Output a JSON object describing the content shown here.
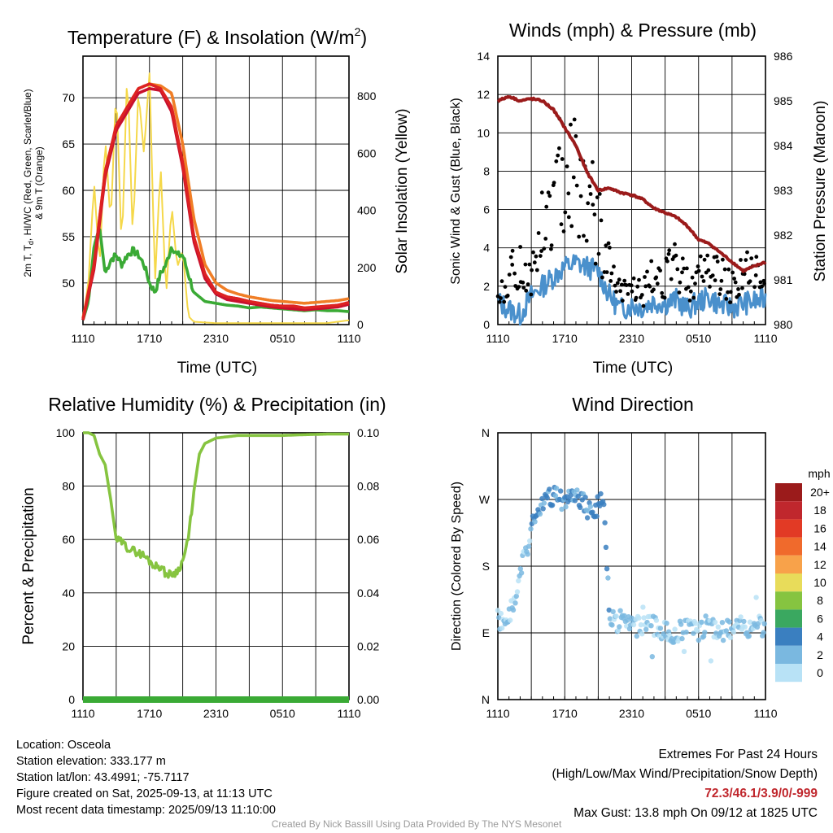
{
  "chart_data": [
    {
      "type": "line",
      "title": "Temperature (F) & Insolation (W/m²)",
      "xlabel": "Time (UTC)",
      "ylabel": "2m T, Td, HI/WC (Red, Green, Scarlet/Blue) & 9m T (Orange)",
      "y2label": "Solar Insolation (Yellow)",
      "x_ticks": [
        "1110",
        "1710",
        "2310",
        "0510",
        "1110"
      ],
      "ylim": [
        45.5,
        74.5
      ],
      "y_ticks": [
        50,
        55,
        60,
        65,
        70
      ],
      "y2lim": [
        0,
        940
      ],
      "y2_ticks": [
        0,
        200,
        400,
        600,
        800
      ],
      "grid": true,
      "series": [
        {
          "name": "2m T",
          "color": "#dd2222",
          "axis": "left",
          "x": [
            0,
            1,
            2,
            3,
            4,
            5,
            6,
            7,
            8,
            9,
            10,
            11,
            12,
            13,
            14,
            15,
            16,
            17,
            18,
            19,
            20,
            21,
            22,
            23,
            24
          ],
          "values": [
            46,
            52,
            62,
            67,
            69,
            71,
            71.5,
            71,
            69,
            63,
            55,
            51,
            49,
            48.5,
            48.3,
            48,
            47.8,
            47.6,
            47.5,
            47.5,
            47.3,
            47.4,
            47.5,
            47.6,
            47.9
          ]
        },
        {
          "name": "Td",
          "color": "#3aaa35",
          "axis": "left",
          "x": [
            0,
            0.5,
            1,
            1.5,
            2,
            2.5,
            3,
            3.5,
            4,
            4.5,
            5,
            5.5,
            6,
            6.5,
            7,
            7.5,
            8,
            8.5,
            9,
            9.5,
            10,
            11,
            12,
            13,
            14,
            15,
            16,
            17,
            18,
            19,
            20,
            21,
            22,
            23,
            24
          ],
          "values": [
            46,
            48,
            54,
            56,
            51,
            52.5,
            53,
            52,
            53,
            53.5,
            53,
            52,
            50,
            49,
            51,
            52,
            54,
            53,
            53,
            51,
            49,
            48,
            47.8,
            47.6,
            47.5,
            47.3,
            47.4,
            47.3,
            47.2,
            47.1,
            47.0,
            47.1,
            47.0,
            47.0,
            46.9
          ]
        },
        {
          "name": "HI/WC",
          "color": "#c8102e",
          "axis": "left",
          "x": [
            0,
            1,
            2,
            3,
            4,
            5,
            6,
            7,
            8,
            9,
            10,
            11,
            12,
            13,
            14,
            15,
            16,
            17,
            18,
            19,
            20,
            21,
            22,
            23,
            24
          ],
          "values": [
            46,
            51.5,
            61.5,
            66.5,
            68.5,
            70.5,
            71,
            70.8,
            68.5,
            62.5,
            54.5,
            50.5,
            48.8,
            48.2,
            48,
            47.8,
            47.6,
            47.4,
            47.3,
            47.2,
            47.1,
            47.2,
            47.3,
            47.4,
            47.7
          ]
        },
        {
          "name": "9m T",
          "color": "#f07e26",
          "axis": "left",
          "x": [
            0,
            1,
            2,
            3,
            4,
            5,
            6,
            7,
            8,
            9,
            10,
            11,
            12,
            13,
            14,
            15,
            16,
            17,
            18,
            19,
            20,
            21,
            22,
            23,
            24
          ],
          "values": [
            46.2,
            52,
            62,
            66.8,
            69,
            71,
            71.5,
            71.3,
            70.5,
            65,
            57,
            52,
            50,
            49.2,
            48.8,
            48.5,
            48.3,
            48.1,
            48,
            47.9,
            47.8,
            47.9,
            48,
            48.1,
            48.3
          ]
        },
        {
          "name": "Solar Insolation",
          "color": "#f5d84a",
          "axis": "right",
          "x": [
            0,
            0.5,
            1,
            1.5,
            2,
            2.5,
            3,
            3.5,
            4,
            4.5,
            5,
            5.5,
            6,
            6.5,
            7,
            7.5,
            8,
            8.5,
            9,
            9.5,
            10,
            12,
            14,
            16,
            18,
            20,
            22,
            24
          ],
          "values": [
            20,
            150,
            500,
            200,
            660,
            350,
            840,
            250,
            900,
            300,
            820,
            600,
            880,
            150,
            560,
            100,
            420,
            200,
            260,
            30,
            10,
            5,
            5,
            5,
            5,
            5,
            5,
            15
          ]
        }
      ]
    },
    {
      "type": "scatter",
      "title": "Winds (mph) & Pressure (mb)",
      "xlabel": "Time (UTC)",
      "ylabel": "Sonic Wind & Gust (Blue, Black)",
      "y2label": "Station Pressure (Maroon)",
      "x_ticks": [
        "1110",
        "1710",
        "2310",
        "0510",
        "1110"
      ],
      "ylim": [
        0,
        14
      ],
      "y_ticks": [
        0,
        2,
        4,
        6,
        8,
        10,
        12,
        14
      ],
      "y2lim": [
        980,
        986
      ],
      "y2_ticks": [
        980,
        981,
        982,
        983,
        984,
        985,
        986
      ],
      "grid": true,
      "series": [
        {
          "name": "Sonic Wind",
          "color": "#4a90cc",
          "axis": "left",
          "x": [
            0,
            1,
            2,
            3,
            4,
            5,
            6,
            7,
            8,
            9,
            10,
            11,
            12,
            13,
            14,
            15,
            16,
            17,
            18,
            19,
            20,
            21,
            22,
            23,
            24
          ],
          "values": [
            1.2,
            0.8,
            0.5,
            1.5,
            2,
            2.5,
            3,
            3.2,
            3,
            2.8,
            1.5,
            0.8,
            1,
            0.9,
            1.2,
            1.1,
            1.3,
            0.8,
            1.2,
            1.4,
            1,
            0.9,
            1.1,
            1.2,
            1.3
          ]
        },
        {
          "name": "Gust",
          "color": "#000000",
          "axis": "left",
          "x": [
            0,
            1,
            2,
            3,
            4,
            5,
            6,
            7,
            8,
            9,
            10,
            11,
            12,
            13,
            14,
            15,
            16,
            17,
            18,
            19,
            20,
            21,
            22,
            23,
            24
          ],
          "values": [
            1.5,
            2.5,
            3,
            2.5,
            5,
            6,
            9,
            8,
            7,
            5,
            3,
            1.5,
            2,
            1.6,
            2.5,
            2.5,
            3,
            2.2,
            2.5,
            3,
            2.5,
            2,
            2.8,
            2.6,
            2.2
          ]
        },
        {
          "name": "Station Pressure",
          "color": "#9b1b1b",
          "axis": "right",
          "x": [
            0,
            1,
            2,
            3,
            4,
            5,
            6,
            7,
            8,
            9,
            10,
            11,
            12,
            13,
            14,
            15,
            16,
            17,
            18,
            19,
            20,
            21,
            22,
            23,
            24
          ],
          "values": [
            985,
            985.1,
            985,
            985.05,
            985,
            984.8,
            984.4,
            984,
            983.4,
            983,
            983.05,
            982.95,
            982.9,
            982.8,
            982.6,
            982.5,
            982.4,
            982.2,
            981.9,
            981.8,
            981.6,
            981.4,
            981.2,
            981.3,
            981.4
          ]
        }
      ]
    },
    {
      "type": "line",
      "title": "Relative Humidity (%) & Precipitation (in)",
      "xlabel": "",
      "ylabel": "Percent & Precipitation",
      "x_ticks": [
        "1110",
        "1710",
        "2310",
        "0510",
        "1110"
      ],
      "ylim": [
        0,
        100
      ],
      "y_ticks": [
        0,
        20,
        40,
        60,
        80,
        100
      ],
      "y2lim": [
        0,
        0.1
      ],
      "y2_ticks": [
        "0.00",
        "0.02",
        "0.04",
        "0.06",
        "0.08",
        "0.10"
      ],
      "grid": true,
      "series": [
        {
          "name": "Relative Humidity",
          "color": "#86c440",
          "axis": "left",
          "x": [
            0,
            0.5,
            1,
            1.5,
            2,
            2.5,
            3,
            3.5,
            4,
            4.5,
            5,
            5.5,
            6,
            6.5,
            7,
            7.5,
            8,
            8.5,
            9,
            9.5,
            10,
            10.5,
            11,
            12,
            14,
            16,
            18,
            20,
            22,
            24
          ],
          "values": [
            100,
            100,
            99,
            92,
            88,
            75,
            60,
            59,
            57,
            56,
            55,
            54,
            52,
            50,
            50,
            47,
            47,
            48,
            52,
            60,
            78,
            92,
            96,
            98,
            99,
            99,
            99,
            99.3,
            99.5,
            99.5
          ]
        },
        {
          "name": "Precipitation",
          "color": "#3aaa35",
          "axis": "right",
          "x": [
            0,
            24
          ],
          "values": [
            0,
            0
          ]
        }
      ]
    },
    {
      "type": "scatter",
      "title": "Wind Direction",
      "ylabel": "Direction (Colored By Speed)",
      "x_ticks": [
        "1110",
        "1710",
        "2310",
        "0510",
        "1110"
      ],
      "y_ticks": [
        "N",
        "E",
        "S",
        "W",
        "N"
      ],
      "ylim": [
        0,
        360
      ],
      "grid": true,
      "legend": {
        "title": "mph",
        "labels": [
          "20+",
          "18",
          "16",
          "14",
          "12",
          "10",
          "8",
          "6",
          "4",
          "2",
          "0"
        ],
        "colors": [
          "#9b1b1b",
          "#c0272d",
          "#e23a25",
          "#f06a2c",
          "#f8a24a",
          "#e8dc5a",
          "#86c440",
          "#3aa860",
          "#3a7fc0",
          "#7ab8e0",
          "#b8e2f6"
        ],
        "position": "right"
      },
      "series": [
        {
          "name": "Direction",
          "x": [
            0,
            0.5,
            1,
            1.5,
            2,
            2.5,
            3,
            3.5,
            4,
            4.5,
            5,
            5.5,
            6,
            6.5,
            7,
            7.5,
            8,
            8.5,
            9,
            9.5,
            10,
            11,
            12,
            13,
            14,
            15,
            16,
            17,
            18,
            19,
            20,
            21,
            22,
            23,
            24
          ],
          "values": [
            110,
            105,
            120,
            125,
            170,
            200,
            230,
            250,
            265,
            270,
            275,
            272,
            268,
            266,
            272,
            270,
            260,
            255,
            265,
            275,
            110,
            105,
            100,
            95,
            100,
            95,
            90,
            98,
            94,
            100,
            95,
            92,
            98,
            100,
            100
          ]
        }
      ]
    }
  ],
  "info": {
    "location": "Location: Osceola",
    "elevation": "Station elevation: 333.177 m",
    "latlon": "Station lat/lon: 43.4991; -75.7117",
    "created": "Figure created on Sat, 2025-09-13, at 11:13 UTC",
    "recent": "Most recent data timestamp: 2025/09/13 11:10:00"
  },
  "extremes": {
    "title": "Extremes For Past 24 Hours",
    "subtitle": "(High/Low/Max Wind/Precipitation/Snow Depth)",
    "values": "72.3/46.1/3.9/0/-999",
    "gust": "Max Gust: 13.8 mph On 09/12 at 1825 UTC"
  },
  "credit": "Created By Nick Bassill Using Data Provided By The NYS Mesonet",
  "colors": {
    "grid": "#000000",
    "background": "#ffffff",
    "highlight": "#c0272d"
  }
}
